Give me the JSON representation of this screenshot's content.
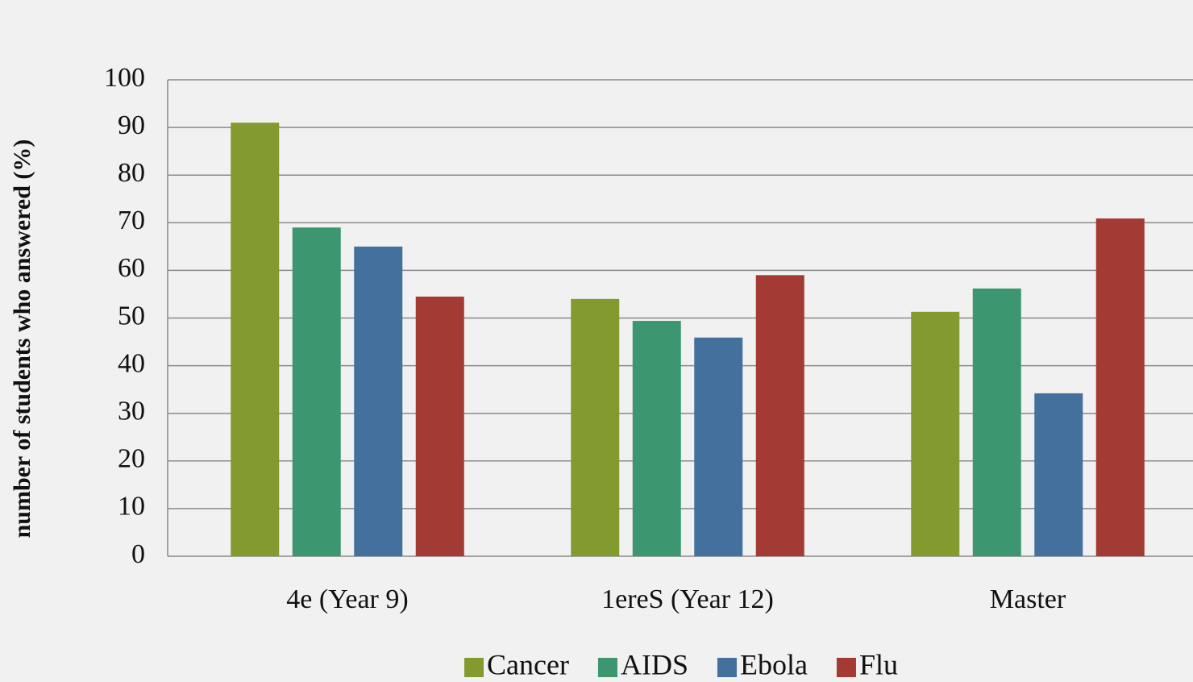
{
  "chart_data": {
    "type": "bar",
    "y_label": "number of  students who answered (%)",
    "categories": [
      "4e (Year 9)",
      "1ereS (Year 12)",
      "Master"
    ],
    "series": [
      {
        "name": "Cancer",
        "color": "#829a2e",
        "values": [
          91,
          54,
          51.3
        ]
      },
      {
        "name": "AIDS",
        "color": "#3c9770",
        "values": [
          69,
          49.4,
          56.2
        ]
      },
      {
        "name": "Ebola",
        "color": "#44709d",
        "values": [
          65,
          45.9,
          34.2
        ]
      },
      {
        "name": "Flu",
        "color": "#a33a34",
        "values": [
          54.5,
          59,
          70.9
        ]
      }
    ],
    "ylim": [
      0,
      100
    ],
    "yticks": [
      0,
      10,
      20,
      30,
      40,
      50,
      60,
      70,
      80,
      90,
      100
    ],
    "grid": true,
    "legend": "bottom"
  }
}
